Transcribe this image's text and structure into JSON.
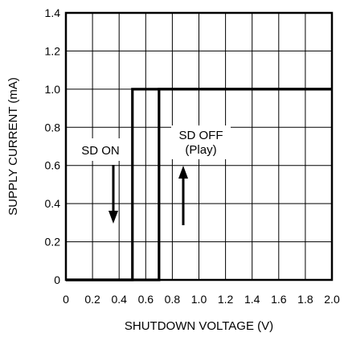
{
  "chart_data": {
    "type": "line",
    "title": "",
    "xlabel": "SHUTDOWN VOLTAGE (V)",
    "ylabel": "SUPPLY CURRENT (mA)",
    "xlim": [
      0,
      2.0
    ],
    "ylim": [
      0,
      1.4
    ],
    "grid": true,
    "x_ticks": [
      "0",
      "0.2",
      "0.4",
      "0.6",
      "0.8",
      "1.0",
      "1.2",
      "1.4",
      "1.6",
      "1.8",
      "2.0"
    ],
    "y_ticks": [
      "0",
      "0.2",
      "0.4",
      "0.6",
      "0.8",
      "1.0",
      "1.2",
      "1.4"
    ],
    "series": [
      {
        "x": [
          0,
          0.5,
          0.5,
          2.0
        ],
        "y": [
          0,
          0,
          1.0,
          1.0
        ]
      },
      {
        "x": [
          0,
          0.7,
          0.7,
          2.0
        ],
        "y": [
          0,
          0,
          1.0,
          1.0
        ]
      }
    ],
    "annotations": [
      {
        "lines": [
          "SD ON"
        ],
        "arrow": "down"
      },
      {
        "lines": [
          "SD OFF",
          "(Play)"
        ],
        "arrow": "up"
      }
    ]
  }
}
